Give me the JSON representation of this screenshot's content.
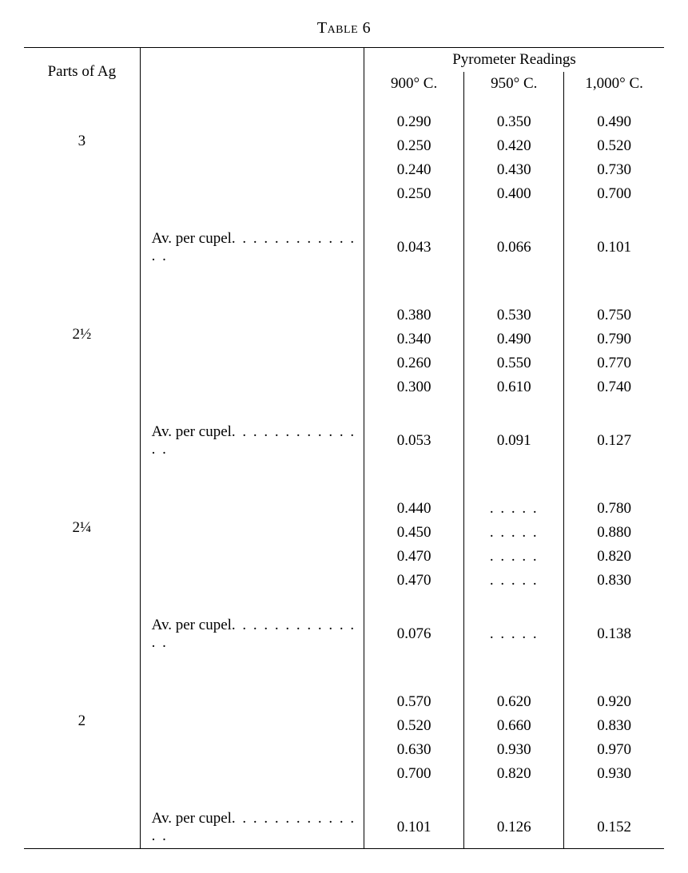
{
  "caption_label": "Table",
  "caption_number": "6",
  "headers": {
    "parts": "Parts of Ag",
    "group": "Pyrometer Readings",
    "c900": "900° C.",
    "c950": "950° C.",
    "c1000": "1,000° C."
  },
  "avg_label": "Av. per cupel",
  "dots": ". . . . .",
  "long_dots": ". . . . . . . . . . . . . .",
  "groups": [
    {
      "parts": "3",
      "rows": [
        {
          "c900": "0.290",
          "c950": "0.350",
          "c1000": "0.490"
        },
        {
          "c900": "0.250",
          "c950": "0.420",
          "c1000": "0.520"
        },
        {
          "c900": "0.240",
          "c950": "0.430",
          "c1000": "0.730"
        },
        {
          "c900": "0.250",
          "c950": "0.400",
          "c1000": "0.700"
        }
      ],
      "avg": {
        "c900": "0.043",
        "c950": "0.066",
        "c1000": "0.101"
      }
    },
    {
      "parts": "2½",
      "rows": [
        {
          "c900": "0.380",
          "c950": "0.530",
          "c1000": "0.750"
        },
        {
          "c900": "0.340",
          "c950": "0.490",
          "c1000": "0.790"
        },
        {
          "c900": "0.260",
          "c950": "0.550",
          "c1000": "0.770"
        },
        {
          "c900": "0.300",
          "c950": "0.610",
          "c1000": "0.740"
        }
      ],
      "avg": {
        "c900": "0.053",
        "c950": "0.091",
        "c1000": "0.127"
      }
    },
    {
      "parts": "2¼",
      "rows": [
        {
          "c900": "0.440",
          "c950": "",
          "c1000": "0.780"
        },
        {
          "c900": "0.450",
          "c950": "",
          "c1000": "0.880"
        },
        {
          "c900": "0.470",
          "c950": "",
          "c1000": "0.820"
        },
        {
          "c900": "0.470",
          "c950": "",
          "c1000": "0.830"
        }
      ],
      "avg": {
        "c900": "0.076",
        "c950": "",
        "c1000": "0.138"
      }
    },
    {
      "parts": "2",
      "rows": [
        {
          "c900": "0.570",
          "c950": "0.620",
          "c1000": "0.920"
        },
        {
          "c900": "0.520",
          "c950": "0.660",
          "c1000": "0.830"
        },
        {
          "c900": "0.630",
          "c950": "0.930",
          "c1000": "0.970"
        },
        {
          "c900": "0.700",
          "c950": "0.820",
          "c1000": "0.930"
        }
      ],
      "avg": {
        "c900": "0.101",
        "c950": "0.126",
        "c1000": "0.152"
      }
    }
  ]
}
